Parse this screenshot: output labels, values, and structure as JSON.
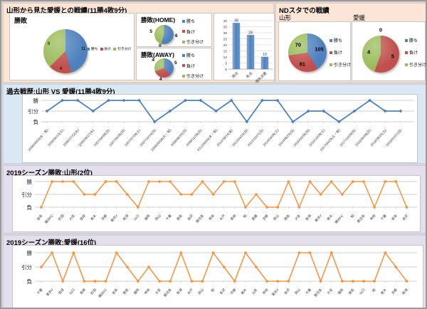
{
  "sections": {
    "head_to_head": {
      "title": "山形から見た愛媛との戦績(11勝4敗9分)"
    },
    "nd_stadium": {
      "title": "NDスタでの戦績"
    }
  },
  "legend_labels": [
    "勝ち",
    "負け",
    "引き分け"
  ],
  "colors": {
    "win": "#4F81BD",
    "lose": "#C0504D",
    "draw": "#9BBB59",
    "line_history": "#4F81BD",
    "line_season": "#F79646",
    "bar": "#4F81BD"
  },
  "chart_data": [
    {
      "id": "overall",
      "type": "pie",
      "title": "勝敗",
      "labels": [
        "勝ち",
        "負け",
        "引き分け"
      ],
      "values": [
        11,
        4,
        9
      ]
    },
    {
      "id": "home",
      "type": "pie",
      "title": "勝敗(HOME)",
      "labels": [
        "勝ち",
        "負け",
        "引き分け"
      ],
      "values": [
        6,
        0,
        5
      ]
    },
    {
      "id": "away",
      "type": "pie",
      "title": "勝敗(AWAY)",
      "labels": [
        "勝ち",
        "負け",
        "引き分け"
      ],
      "values": [
        5,
        4,
        4
      ]
    },
    {
      "id": "goals",
      "type": "bar",
      "categories": [
        "得点",
        "失点",
        "得失点差"
      ],
      "values": [
        38,
        28,
        10
      ],
      "ylim": [
        0,
        40
      ],
      "ystep": 5
    },
    {
      "id": "nd_yamagata",
      "type": "pie",
      "title": "山形",
      "labels": [
        "勝ち",
        "負け",
        "引き分け"
      ],
      "values": [
        105,
        81,
        70
      ]
    },
    {
      "id": "nd_ehime",
      "type": "pie",
      "title": "愛媛",
      "labels": [
        "勝ち",
        "負け",
        "引き分け"
      ],
      "values": [
        0,
        5,
        4
      ]
    },
    {
      "id": "history",
      "type": "line",
      "title": "過去戦歴:山形 VS 愛媛(11勝4敗9分)",
      "yticks": [
        "勝",
        "引分",
        "負"
      ],
      "categories": [
        "2006/05/03(水・祝)",
        "2006/06/10(土)",
        "2006/07/12(水)",
        "2006/09/27(水)",
        "2007/04/08(日)",
        "2007/05/06(日)",
        "2007/07/28(土)",
        "2007/10/14(日)",
        "2008/05/06(火・祝)",
        "2008/08/24(日)",
        "2008/11/09(日)",
        "2012/05/03(木・祝)",
        "2012/09/14(金)",
        "2013/03/03(日)",
        "2013/10/27(日)",
        "2014/04/05(土)",
        "2014/08/24(日)",
        "2016/03/06(日)",
        "2016/10/08(土)",
        "2017/04/29(土・祝)",
        "2017/10/29(日)",
        "2018/04/08(日)",
        "2018/08/25(土)",
        "2019/07/07(日)"
      ],
      "results": [
        "引分",
        "勝",
        "勝",
        "引分",
        "勝",
        "勝",
        "勝",
        "負",
        "引分",
        "勝",
        "勝",
        "引分",
        "勝",
        "負",
        "勝",
        "勝",
        "負",
        "引分",
        "引分",
        "負",
        "引分",
        "勝",
        "引分",
        "引分"
      ]
    },
    {
      "id": "season_yamagata",
      "type": "line",
      "title": "2019シーズン勝敗:山形(2位)",
      "yticks": [
        "勝",
        "引分",
        "負"
      ],
      "categories": [
        "岐阜",
        "横浜FC",
        "町田",
        "大宮",
        "琉球",
        "栃木",
        "京都",
        "東京V",
        "新潟",
        "山口",
        "福岡",
        "岡山",
        "千葉",
        "徳島",
        "金沢",
        "鹿児島",
        "甲府",
        "水戸",
        "長崎",
        "柏",
        "愛媛",
        "京都",
        "岡山",
        "徳島",
        "大宮",
        "新潟",
        "東京V",
        "栃木",
        "横浜FC",
        "柏",
        "鹿児島",
        "甲府",
        "千葉",
        "岐阜",
        "金沢"
      ],
      "results": [
        "負",
        "勝",
        "勝",
        "勝",
        "引分",
        "引分",
        "勝",
        "勝",
        "引分",
        "負",
        "勝",
        "勝",
        "勝",
        "引分",
        "引分",
        "勝",
        "引分",
        "勝",
        "勝",
        "負",
        "引分",
        "負",
        "負",
        "勝",
        "負",
        "勝",
        "引分",
        "勝",
        "引分",
        "勝",
        "勝",
        "負",
        "勝",
        "勝",
        "負"
      ]
    },
    {
      "id": "season_ehime",
      "type": "line",
      "title": "2019シーズン勝敗:愛媛(16位)",
      "yticks": [
        "勝",
        "引分",
        "負"
      ],
      "categories": [
        "千葉",
        "東京V",
        "琉球",
        "山口",
        "長崎",
        "町田",
        "横浜FC",
        "岐阜",
        "徳島",
        "福岡",
        "甲府",
        "大宮",
        "鹿児島",
        "新潟",
        "水戸",
        "岡山",
        "柏",
        "金沢",
        "京都",
        "栃木",
        "山形",
        "甲府",
        "東京V",
        "金沢",
        "岡山",
        "千葉",
        "鹿児島",
        "大宮",
        "福岡",
        "徳島",
        "山口",
        "柏",
        "栃木",
        "京都",
        "新潟"
      ],
      "results": [
        "引分",
        "勝",
        "負",
        "勝",
        "負",
        "負",
        "負",
        "勝",
        "引分",
        "負",
        "引分",
        "負",
        "負",
        "勝",
        "負",
        "負",
        "勝",
        "引分",
        "負",
        "勝",
        "引分",
        "負",
        "負",
        "負",
        "勝",
        "勝",
        "負",
        "勝",
        "負",
        "負",
        "負",
        "負",
        "勝",
        "引分",
        "負"
      ]
    }
  ]
}
